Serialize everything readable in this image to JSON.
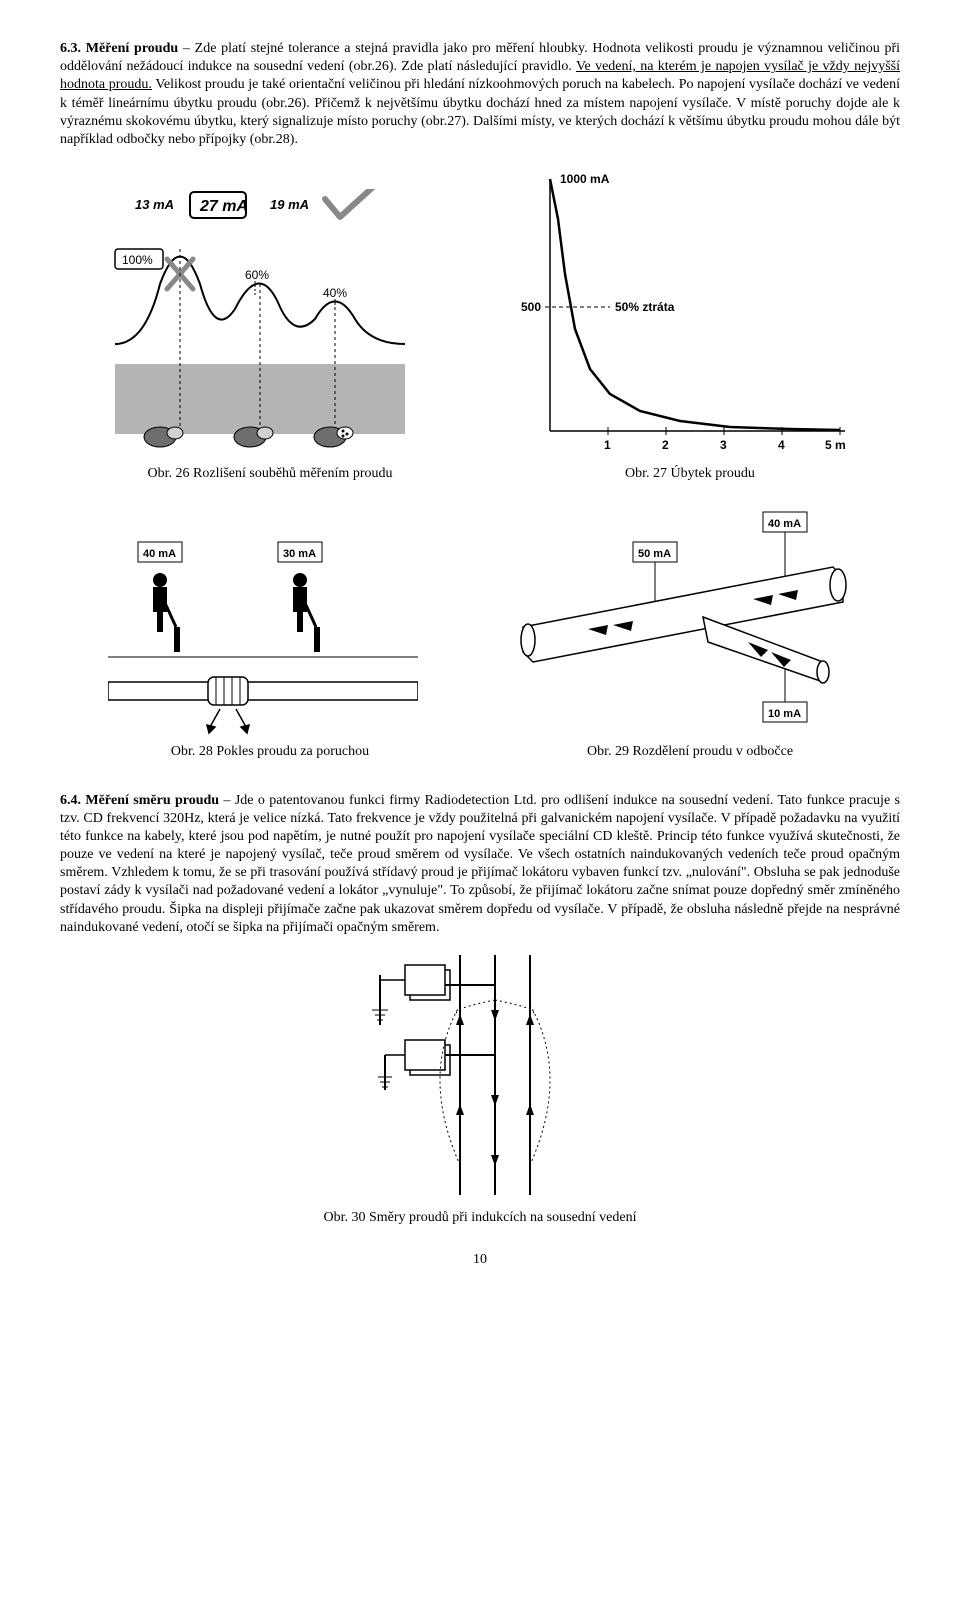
{
  "section63": {
    "heading_num": "6.3.",
    "heading": "Měření proudu",
    "text": "– Zde platí stejné tolerance a stejná pravidla jako pro měření hloubky. Hodnota velikosti proudu je významnou veličinou při oddělování nežádoucí indukce na sousední vedení (obr.26). Zde platí následující pravidlo. ",
    "underlined": "Ve vedení, na kterém je napojen vysílač je vždy nejvyšší hodnota proudu.",
    "text2": " Velikost proudu je také orientační veličinou při hledání nízkoohmových poruch na kabelech. Po napojení vysílače dochází ve vedení k téměř lineárnímu úbytku proudu (obr.26). Přičemž k největšímu úbytku dochází hned za místem napojení vysílače. V místě poruchy dojde ale k výraznému skokovému úbytku, který signalizuje místo poruchy (obr.27). Dalšími místy, ve kterých dochází k většímu úbytku proudu mohou dále být například odbočky nebo přípojky (obr.28)."
  },
  "fig26": {
    "caption": "Obr. 26 Rozlišení souběhů měřením proudu",
    "ma_labels": [
      "13 mA",
      "27 mA",
      "19 mA"
    ],
    "pct_labels": [
      "100%",
      "60%",
      "40%"
    ],
    "colors": {
      "line": "#000000",
      "fill": "#b4b4b4",
      "darkfill": "#6e6e6e"
    }
  },
  "fig27": {
    "caption": "Obr. 27 Úbytek proudu",
    "ylabel_top": "1000 mA",
    "ylabel_mid": "500",
    "mid_note": "50% ztráta",
    "xticks": [
      "1",
      "2",
      "3",
      "4",
      "5 m"
    ],
    "curve": [
      [
        0,
        0
      ],
      [
        8,
        40
      ],
      [
        15,
        95
      ],
      [
        25,
        150
      ],
      [
        40,
        190
      ],
      [
        60,
        215
      ],
      [
        90,
        232
      ],
      [
        130,
        242
      ],
      [
        180,
        248
      ],
      [
        240,
        250
      ],
      [
        290,
        251
      ]
    ]
  },
  "fig28": {
    "caption": "Obr. 28 Pokles proudu za poruchou",
    "labels": [
      "40 mA",
      "30 mA"
    ]
  },
  "fig29": {
    "caption": "Obr. 29 Rozdělení proudu v odbočce",
    "labels": [
      "50 mA",
      "40 mA",
      "10 mA"
    ]
  },
  "section64": {
    "heading_num": "6.4.",
    "heading": "Měření směru proudu",
    "text": "– Jde o patentovanou funkci firmy Radiodetection Ltd. pro odlišení indukce na sousední vedení.  Tato funkce pracuje s tzv. CD frekvencí 320Hz, která je velice nízká. Tato frekvence je vždy použitelná při galvanickém napojení vysílače. V případě požadavku na využití této funkce na kabely, které jsou pod napětím, je nutné použít pro napojení vysílače speciální CD kleště. Princip této funkce využívá skutečnosti, že pouze ve vedení na které je napojený vysílač, teče proud směrem od vysílače. Ve všech ostatních naindukovaných vedeních teče proud opačným směrem.  Vzhledem k tomu, že se při trasování používá střídavý proud je přijímač lokátoru vybaven funkcí tzv. „nulování\". Obsluha se pak jednoduše postaví zády k vysílači nad požadované vedení a lokátor „vynuluje\". To způsobí, že přijímač lokátoru začne snímat pouze dopředný směr zmíněného střídavého proudu. Šipka na displeji přijímače začne pak ukazovat směrem dopředu od vysílače. V případě, že obsluha následně přejde na nesprávné naindukované vedení, otočí se šipka na přijímači opačným směrem."
  },
  "fig30": {
    "caption": "Obr. 30 Směry proudů při indukcích na sousední vedení"
  },
  "page_number": "10"
}
